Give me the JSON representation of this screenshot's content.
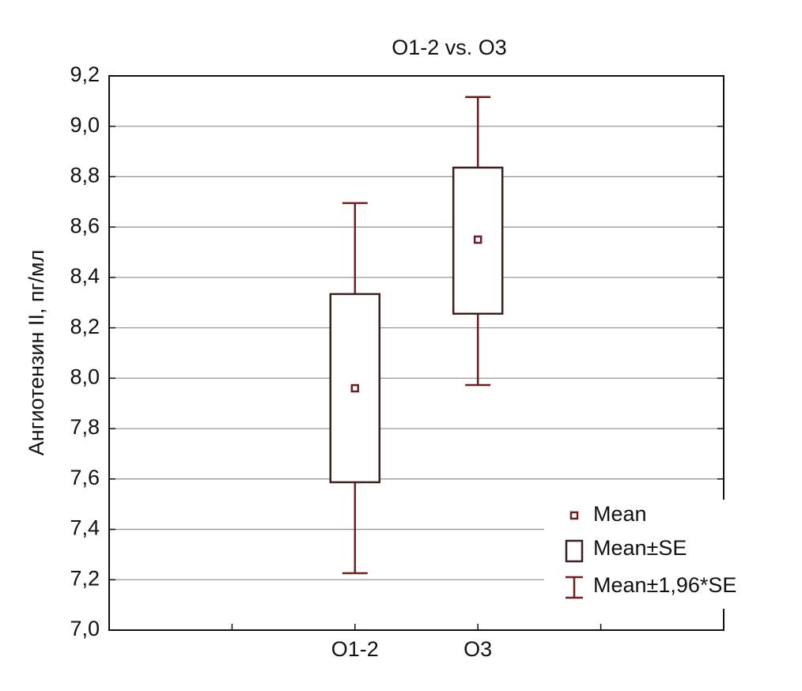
{
  "chart_data": {
    "type": "box",
    "title": "O1-2 vs. O3",
    "y_label": "Ангиотензин II, пг/мл",
    "categories": [
      null,
      "O1-2",
      "O3",
      null
    ],
    "mean": [
      null,
      7.96,
      8.55,
      null
    ],
    "se_low": [
      null,
      7.587,
      8.256,
      null
    ],
    "se_high": [
      null,
      8.334,
      8.836,
      null
    ],
    "ci_low": [
      null,
      7.226,
      7.973,
      null
    ],
    "ci_high": [
      null,
      8.695,
      9.116,
      null
    ],
    "color": "#6b1f1f",
    "box_color": "#3a1f1f",
    "legend": [
      "Mean",
      "Mean±SE",
      "Mean±1,96*SE"
    ],
    "legend_position": "lower right",
    "ylim": [
      7.0,
      9.2
    ],
    "yticks": [
      {
        "value": 7.0,
        "label": "7,0"
      },
      {
        "value": 7.2,
        "label": "7,2"
      },
      {
        "value": 7.4,
        "label": "7,4"
      },
      {
        "value": 7.6,
        "label": "7,6"
      },
      {
        "value": 7.8,
        "label": "7,8"
      },
      {
        "value": 8.0,
        "label": "8,0"
      },
      {
        "value": 8.2,
        "label": "8,2"
      },
      {
        "value": 8.4,
        "label": "8,4"
      },
      {
        "value": 8.6,
        "label": "8,6"
      },
      {
        "value": 8.8,
        "label": "8,8"
      },
      {
        "value": 9.0,
        "label": "9,0"
      },
      {
        "value": 9.2,
        "label": "9,2"
      }
    ],
    "grid": true
  }
}
